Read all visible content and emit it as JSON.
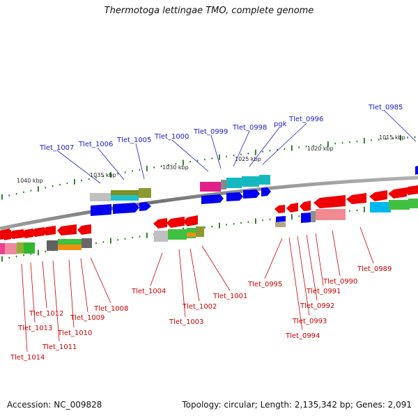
{
  "title": "Thermotoga lettingae TMO, complete genome",
  "footer": {
    "accession": "Accession: NC_009828",
    "topology": "Topology: circular; Length: 2,135,342 bp; Genes: 2,091"
  },
  "colors": {
    "backbone": "#808080",
    "blue_label": "#1a1acc",
    "red_label": "#cc0000",
    "tick": "#1a7a1a",
    "forward_gene": "#0000ee",
    "reverse_gene": "#ee0000"
  },
  "scale_labels": [
    "1040 kbp",
    "1035 kbp",
    "1030 kbp",
    "1025 kbp",
    "1020 kbp",
    "1015 kbp"
  ],
  "labels_top": [
    "Tlet_1007",
    "Tlet_1006",
    "Tlet_1005",
    "Tlet_1000",
    "Tlet_0999",
    "Tlet_0998",
    "pgk",
    "Tlet_0996",
    "Tlet_0985"
  ],
  "labels_bottom": [
    "Tlet_1014",
    "Tlet_1013",
    "Tlet_1012",
    "Tlet_1011",
    "Tlet_1010",
    "Tlet_1009",
    "Tlet_1008",
    "Tlet_1004",
    "Tlet_1003",
    "Tlet_1002",
    "Tlet_1001",
    "Tlet_0995",
    "Tlet_0994",
    "Tlet_0993",
    "Tlet_0992",
    "Tlet_0991",
    "Tlet_0990",
    "Tlet_0989"
  ]
}
